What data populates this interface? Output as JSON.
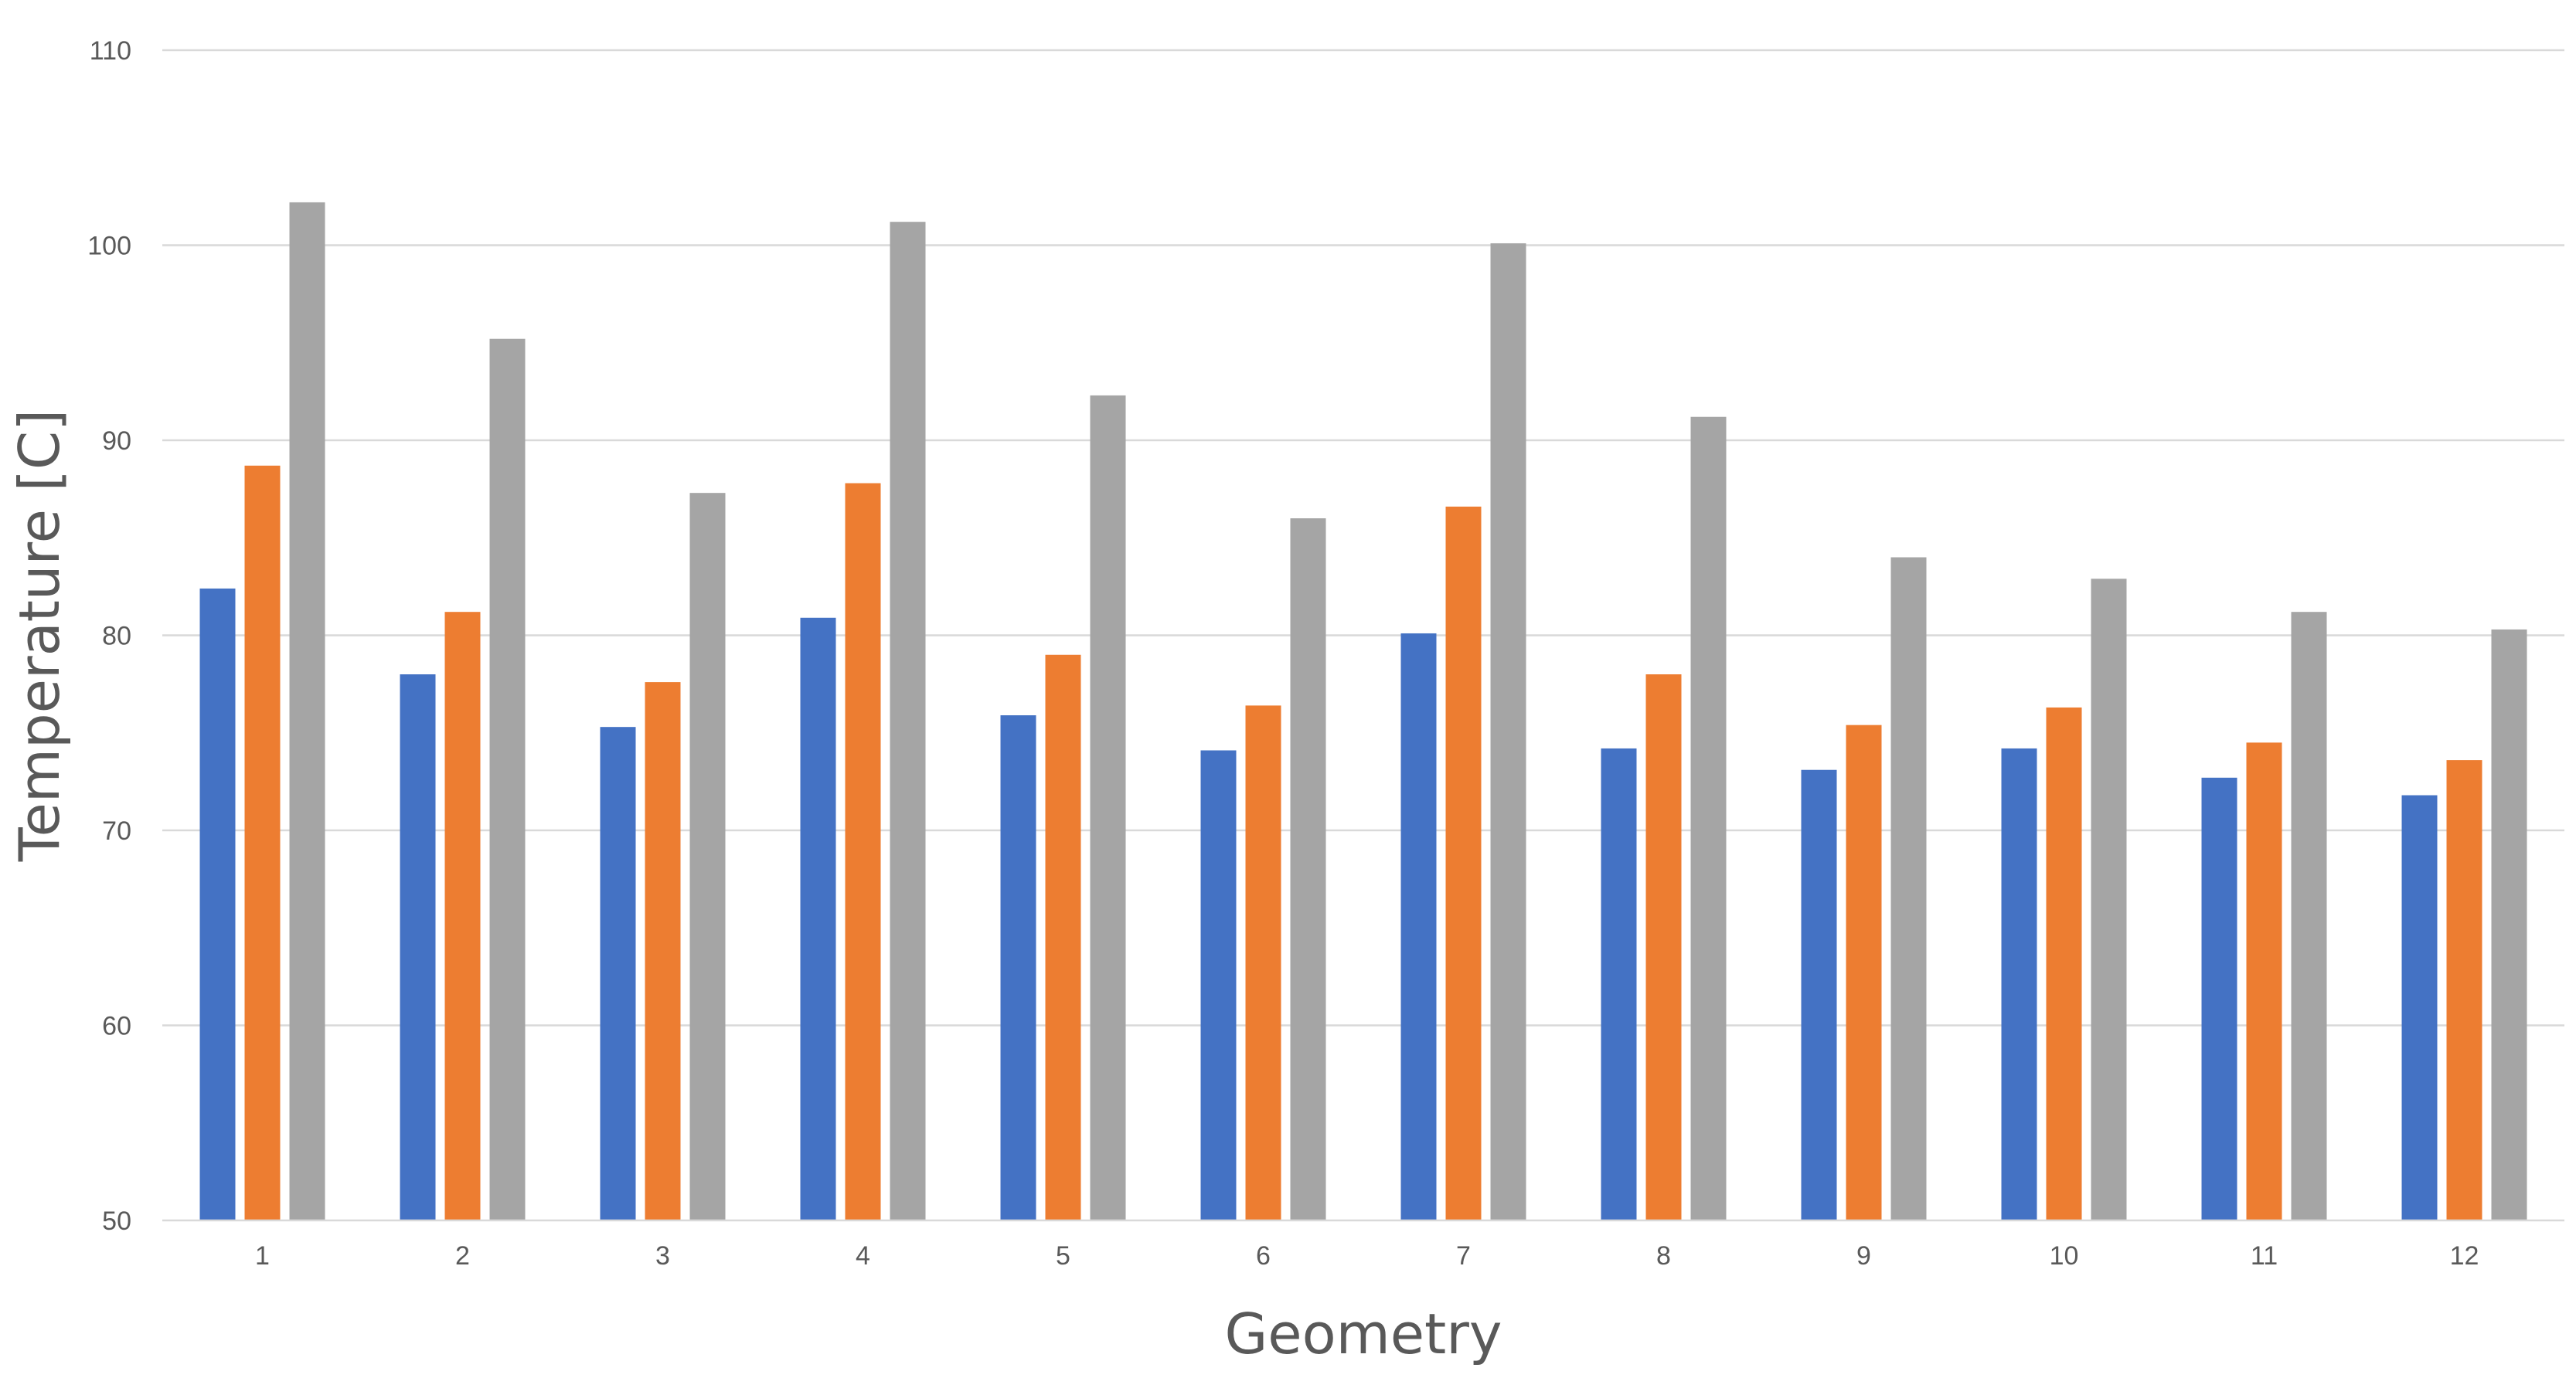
{
  "chart_data": {
    "type": "bar",
    "title": "",
    "xlabel": "Geometry",
    "ylabel": "Temperature [C]",
    "ylim": [
      50,
      110
    ],
    "yticks": [
      "50",
      "60",
      "70",
      "80",
      "90",
      "100",
      "110"
    ],
    "categories": [
      "1",
      "2",
      "3",
      "4",
      "5",
      "6",
      "7",
      "8",
      "9",
      "10",
      "11",
      "12"
    ],
    "grid": true,
    "legend": "none",
    "series": [
      {
        "color": "#4472c4",
        "values": [
          82.4,
          78.0,
          75.3,
          80.9,
          75.9,
          74.1,
          80.1,
          74.2,
          73.1,
          74.2,
          72.7,
          71.8
        ]
      },
      {
        "color": "#ed7d31",
        "values": [
          88.7,
          81.2,
          77.6,
          87.8,
          79.0,
          76.4,
          86.6,
          78.0,
          75.4,
          76.3,
          74.5,
          73.6
        ]
      },
      {
        "color": "#a5a5a5",
        "values": [
          102.2,
          95.2,
          87.3,
          101.2,
          92.3,
          86.0,
          100.1,
          91.2,
          84.0,
          82.9,
          81.2,
          80.3
        ]
      }
    ]
  }
}
